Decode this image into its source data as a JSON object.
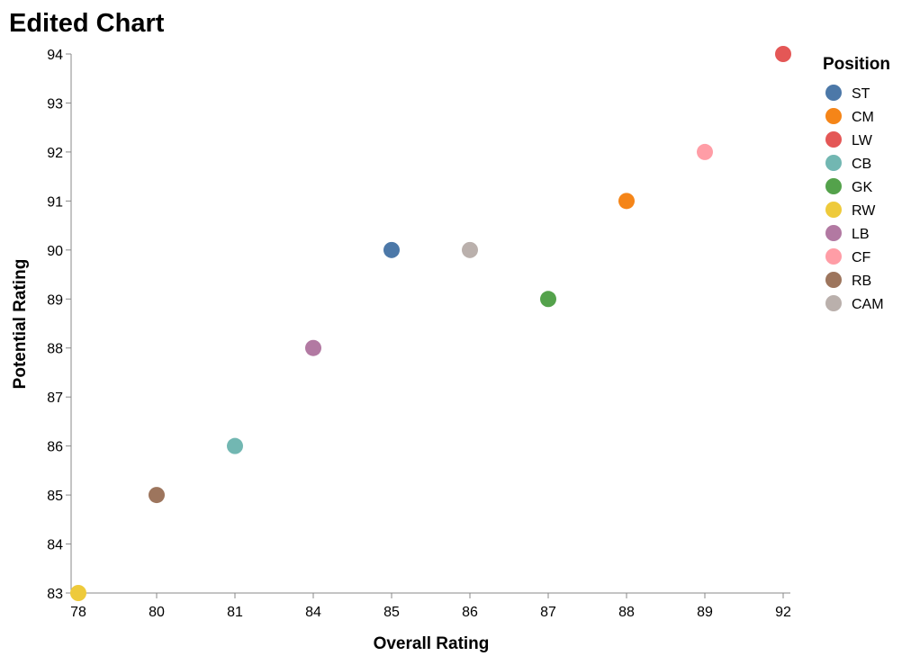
{
  "chart_data": {
    "type": "scatter",
    "title": "Edited Chart",
    "xlabel": "Overall Rating",
    "ylabel": "Potential Rating",
    "x_axis_type": "ordinal",
    "x_categories": [
      "78",
      "80",
      "81",
      "84",
      "85",
      "86",
      "87",
      "88",
      "89",
      "92"
    ],
    "y_ticks": [
      83,
      84,
      85,
      86,
      87,
      88,
      89,
      90,
      91,
      92,
      93,
      94
    ],
    "ylim": [
      83,
      94
    ],
    "grid": false,
    "legend": {
      "title": "Position",
      "placement": "top-right",
      "entries": [
        {
          "label": "ST",
          "color": "#4c78a8"
        },
        {
          "label": "CM",
          "color": "#f58518"
        },
        {
          "label": "LW",
          "color": "#e45756"
        },
        {
          "label": "CB",
          "color": "#72b7b2"
        },
        {
          "label": "GK",
          "color": "#54a24b"
        },
        {
          "label": "RW",
          "color": "#eeca3b"
        },
        {
          "label": "LB",
          "color": "#b279a2"
        },
        {
          "label": "CF",
          "color": "#ff9da6"
        },
        {
          "label": "RB",
          "color": "#9d755d"
        },
        {
          "label": "CAM",
          "color": "#bab0ac"
        }
      ]
    },
    "points": [
      {
        "position": "ST",
        "x": "85",
        "y": 90
      },
      {
        "position": "CM",
        "x": "88",
        "y": 91
      },
      {
        "position": "LW",
        "x": "92",
        "y": 94
      },
      {
        "position": "CB",
        "x": "81",
        "y": 86
      },
      {
        "position": "GK",
        "x": "87",
        "y": 89
      },
      {
        "position": "RW",
        "x": "78",
        "y": 83
      },
      {
        "position": "LB",
        "x": "84",
        "y": 88
      },
      {
        "position": "CF",
        "x": "89",
        "y": 92
      },
      {
        "position": "RB",
        "x": "80",
        "y": 85
      },
      {
        "position": "CAM",
        "x": "86",
        "y": 90
      }
    ]
  }
}
